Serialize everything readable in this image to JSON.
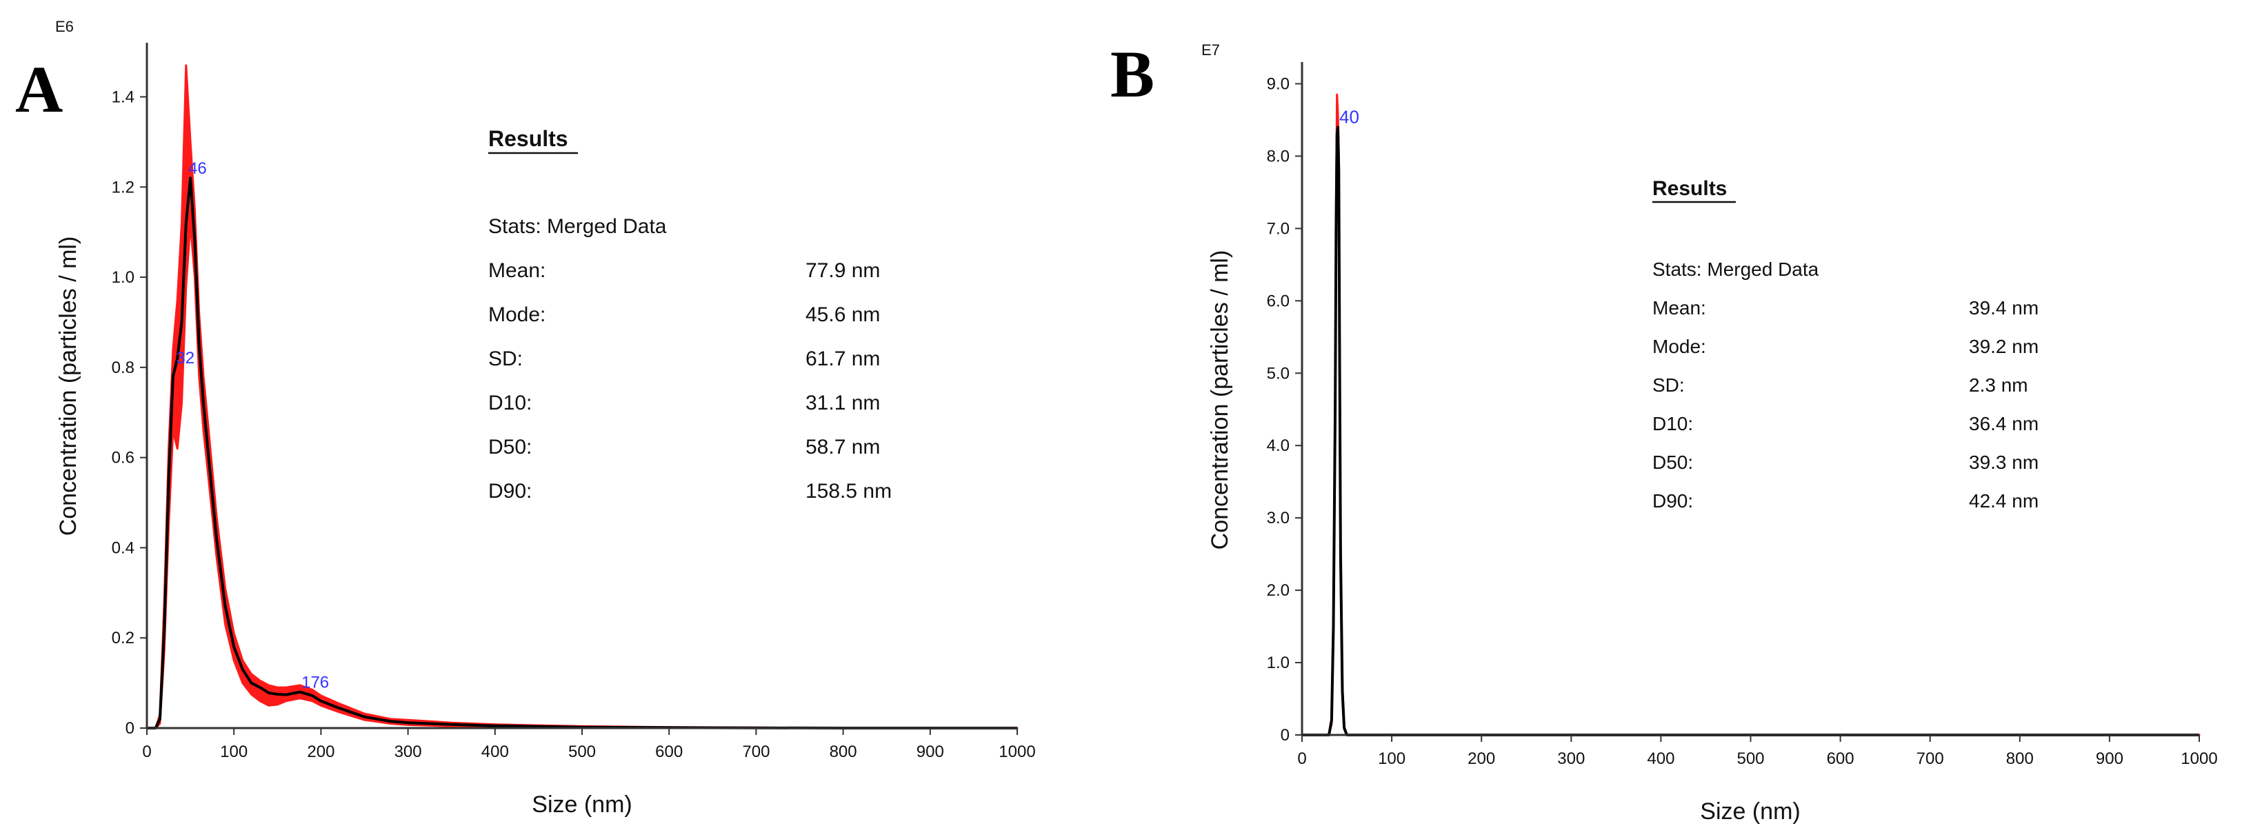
{
  "panels": [
    {
      "letter": "A",
      "multiplier": "E6",
      "results": {
        "heading": "Results",
        "stats": "Stats: Merged Data",
        "rows": [
          {
            "label": "Mean:",
            "value": "77.9 nm"
          },
          {
            "label": "Mode:",
            "value": "45.6 nm"
          },
          {
            "label": "SD:",
            "value": "61.7 nm"
          },
          {
            "label": "D10:",
            "value": "31.1 nm"
          },
          {
            "label": "D50:",
            "value": "58.7 nm"
          },
          {
            "label": "D90:",
            "value": "158.5 nm"
          }
        ]
      }
    },
    {
      "letter": "B",
      "multiplier": "E7",
      "results": {
        "heading": "Results",
        "stats": "Stats: Merged Data",
        "rows": [
          {
            "label": "Mean:",
            "value": "39.4 nm"
          },
          {
            "label": "Mode:",
            "value": "39.2 nm"
          },
          {
            "label": "SD:",
            "value": "2.3 nm"
          },
          {
            "label": "D10:",
            "value": "36.4 nm"
          },
          {
            "label": "D50:",
            "value": "39.3 nm"
          },
          {
            "label": "D90:",
            "value": "42.4 nm"
          }
        ]
      }
    }
  ],
  "chart_data": [
    {
      "type": "area",
      "xlabel": "Size (nm)",
      "ylabel": "Concentration (particles / ml)",
      "xlim": [
        0,
        1000
      ],
      "ylim": [
        0,
        1.52
      ],
      "x_ticks": [
        0,
        100,
        200,
        300,
        400,
        500,
        600,
        700,
        800,
        900,
        1000
      ],
      "x_tick_labels": [
        "0",
        "100",
        "200",
        "300",
        "400",
        "500",
        "600",
        "700",
        "800",
        "900",
        "1000"
      ],
      "y_ticks": [
        0,
        0.2,
        0.4,
        0.6,
        0.8,
        1.0,
        1.2,
        1.4
      ],
      "y_tick_labels": [
        "0",
        "0.2",
        "0.4",
        "0.6",
        "0.8",
        "1.0",
        "1.2",
        "1.4"
      ],
      "grid": false,
      "colors": {
        "band": "#ff1a1a",
        "mean": "#000000",
        "peak_label": "#3333ff"
      },
      "series": [
        {
          "role": "mean",
          "x": [
            0,
            10,
            15,
            20,
            25,
            30,
            35,
            40,
            45,
            50,
            55,
            60,
            65,
            70,
            80,
            90,
            100,
            110,
            120,
            130,
            140,
            150,
            160,
            176,
            190,
            200,
            220,
            250,
            280,
            300,
            350,
            400,
            500,
            600,
            700,
            800,
            900,
            1000
          ],
          "y": [
            0,
            0,
            0.02,
            0.22,
            0.55,
            0.78,
            0.82,
            0.9,
            1.12,
            1.22,
            1.08,
            0.85,
            0.72,
            0.62,
            0.42,
            0.27,
            0.18,
            0.13,
            0.1,
            0.09,
            0.078,
            0.075,
            0.074,
            0.08,
            0.072,
            0.06,
            0.045,
            0.025,
            0.015,
            0.012,
            0.008,
            0.005,
            0.002,
            0.001,
            0.0005,
            0,
            0,
            0
          ]
        },
        {
          "role": "upper",
          "x": [
            0,
            10,
            15,
            20,
            25,
            30,
            35,
            40,
            45,
            50,
            55,
            60,
            65,
            70,
            80,
            90,
            100,
            110,
            120,
            130,
            140,
            150,
            160,
            176,
            190,
            200,
            220,
            250,
            280,
            300,
            350,
            400,
            500,
            600,
            700,
            800,
            900,
            1000
          ],
          "y": [
            0,
            0,
            0.03,
            0.28,
            0.62,
            0.84,
            0.95,
            1.12,
            1.47,
            1.3,
            1.15,
            0.92,
            0.78,
            0.68,
            0.47,
            0.31,
            0.21,
            0.15,
            0.12,
            0.105,
            0.095,
            0.09,
            0.09,
            0.095,
            0.085,
            0.072,
            0.055,
            0.032,
            0.02,
            0.018,
            0.012,
            0.008,
            0.004,
            0.002,
            0.001,
            0,
            0,
            0
          ]
        },
        {
          "role": "lower",
          "x": [
            0,
            10,
            15,
            20,
            25,
            30,
            35,
            40,
            45,
            50,
            55,
            60,
            65,
            70,
            80,
            90,
            100,
            110,
            120,
            130,
            140,
            150,
            160,
            176,
            190,
            200,
            220,
            250,
            280,
            300,
            350,
            400,
            500,
            600,
            700,
            800,
            900,
            1000
          ],
          "y": [
            0,
            0,
            0.01,
            0.17,
            0.45,
            0.66,
            0.62,
            0.72,
            0.98,
            1.12,
            1.0,
            0.78,
            0.66,
            0.57,
            0.38,
            0.23,
            0.15,
            0.1,
            0.075,
            0.06,
            0.05,
            0.052,
            0.06,
            0.066,
            0.06,
            0.05,
            0.036,
            0.018,
            0.01,
            0.007,
            0.004,
            0.002,
            0.001,
            0,
            0,
            0,
            0,
            0
          ]
        }
      ],
      "peak_labels": [
        {
          "x": 46,
          "y": 1.22,
          "text": "46"
        },
        {
          "x": 32,
          "y": 0.8,
          "text": "32"
        },
        {
          "x": 176,
          "y": 0.08,
          "text": "176"
        }
      ]
    },
    {
      "type": "area",
      "xlabel": "Size (nm)",
      "ylabel": "Concentration (particles / ml)",
      "xlim": [
        0,
        1000
      ],
      "ylim": [
        0,
        9.3
      ],
      "x_ticks": [
        0,
        100,
        200,
        300,
        400,
        500,
        600,
        700,
        800,
        900,
        1000
      ],
      "x_tick_labels": [
        "0",
        "100",
        "200",
        "300",
        "400",
        "500",
        "600",
        "700",
        "800",
        "900",
        "1000"
      ],
      "y_ticks": [
        0,
        1,
        2,
        3,
        4,
        5,
        6,
        7,
        8,
        9
      ],
      "y_tick_labels": [
        "0",
        "1.0",
        "2.0",
        "3.0",
        "4.0",
        "5.0",
        "6.0",
        "7.0",
        "8.0",
        "9.0"
      ],
      "grid": false,
      "colors": {
        "band": "#ff1a1a",
        "mean": "#000000",
        "peak_label": "#3333ff"
      },
      "series": [
        {
          "role": "mean",
          "x": [
            0,
            30,
            33,
            35,
            37,
            38,
            39,
            40,
            41,
            42,
            43,
            45,
            47,
            50,
            1000
          ],
          "y": [
            0,
            0,
            0.2,
            1.5,
            4.5,
            7.0,
            8.3,
            8.4,
            7.8,
            5.0,
            2.5,
            0.6,
            0.1,
            0,
            0
          ]
        },
        {
          "role": "upper",
          "x": [
            0,
            30,
            33,
            35,
            37,
            38,
            39,
            40,
            41,
            42,
            43,
            45,
            47,
            50,
            1000
          ],
          "y": [
            0,
            0,
            0.25,
            1.7,
            4.8,
            7.4,
            8.85,
            8.6,
            8.0,
            5.3,
            2.7,
            0.7,
            0.12,
            0,
            0
          ]
        },
        {
          "role": "lower",
          "x": [
            0,
            30,
            33,
            35,
            37,
            38,
            39,
            40,
            41,
            42,
            43,
            45,
            47,
            50,
            1000
          ],
          "y": [
            0,
            0,
            0.15,
            1.3,
            4.2,
            6.6,
            7.9,
            8.2,
            7.6,
            4.7,
            2.3,
            0.5,
            0.08,
            0,
            0
          ]
        }
      ],
      "peak_labels": [
        {
          "x": 40,
          "y": 8.4,
          "text": "40"
        }
      ]
    }
  ]
}
